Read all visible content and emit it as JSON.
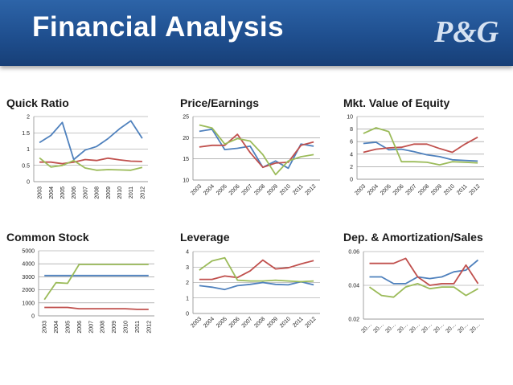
{
  "header": {
    "title": "Financial Analysis",
    "logo_text": "P&G"
  },
  "colors": {
    "blue": "#4f81bd",
    "red": "#c0504d",
    "green": "#9bbb59"
  },
  "chart_data": [
    {
      "id": "quick",
      "type": "line",
      "title": "Quick Ratio",
      "categories": [
        "2003",
        "2004",
        "2005",
        "2006",
        "2007",
        "2008",
        "2009",
        "2010",
        "2011",
        "2012"
      ],
      "ylim": [
        0,
        2
      ],
      "yticks": [
        0,
        0.5,
        1,
        1.5,
        2
      ],
      "ytick_labels": [
        "0",
        "0.5",
        "1",
        "1.5",
        "2"
      ],
      "series": [
        {
          "color": "blue",
          "values": [
            1.2,
            1.42,
            1.82,
            0.68,
            0.97,
            1.08,
            1.32,
            1.62,
            1.87,
            1.33
          ]
        },
        {
          "color": "red",
          "values": [
            0.6,
            0.6,
            0.55,
            0.6,
            0.68,
            0.65,
            0.72,
            0.67,
            0.63,
            0.62
          ]
        },
        {
          "color": "green",
          "values": [
            0.73,
            0.45,
            0.5,
            0.65,
            0.42,
            0.35,
            0.37,
            0.36,
            0.35,
            0.44
          ]
        }
      ]
    },
    {
      "id": "pe",
      "type": "line",
      "title": "Price/Earnings",
      "categories": [
        "2003",
        "2004",
        "2005",
        "2006",
        "2007",
        "2008",
        "2009",
        "2010",
        "2011",
        "2012"
      ],
      "ylim": [
        10,
        25
      ],
      "yticks": [
        10,
        15,
        20,
        25
      ],
      "ytick_labels": [
        "10",
        "15",
        "20",
        "25"
      ],
      "series": [
        {
          "color": "blue",
          "values": [
            21.5,
            22,
            17.2,
            17.5,
            18,
            13,
            14.5,
            12.8,
            18.5,
            18
          ]
        },
        {
          "color": "red",
          "values": [
            17.8,
            18.2,
            18.2,
            20.8,
            16.5,
            13,
            14,
            14.2,
            18.2,
            19
          ]
        },
        {
          "color": "green",
          "values": [
            23,
            22.3,
            18.5,
            19.8,
            19.2,
            16,
            11.3,
            14.5,
            15.5,
            16
          ]
        }
      ]
    },
    {
      "id": "mve",
      "type": "line",
      "title": "Mkt. Value of Equity",
      "categories": [
        "2003",
        "2004",
        "2005",
        "2006",
        "2007",
        "2008",
        "2009",
        "2010",
        "2011",
        "2012"
      ],
      "ylim": [
        0,
        10
      ],
      "yticks": [
        0,
        2,
        4,
        6,
        8,
        10
      ],
      "ytick_labels": [
        "0",
        "2",
        "4",
        "6",
        "8",
        "10"
      ],
      "series": [
        {
          "color": "blue",
          "values": [
            5.7,
            5.9,
            4.7,
            4.8,
            4.4,
            3.9,
            3.6,
            3.1,
            3,
            2.9
          ]
        },
        {
          "color": "red",
          "values": [
            4.3,
            4.8,
            5,
            5.1,
            5.6,
            5.6,
            4.9,
            4.3,
            5.6,
            6.7
          ]
        },
        {
          "color": "green",
          "values": [
            7.3,
            8.2,
            7.6,
            2.8,
            2.8,
            2.7,
            2.3,
            2.8,
            2.7,
            2.6
          ]
        }
      ]
    },
    {
      "id": "cs",
      "type": "line",
      "title": "Common Stock",
      "categories": [
        "2003",
        "2004",
        "2005",
        "2006",
        "2007",
        "2008",
        "2009",
        "2010",
        "2011",
        "2012"
      ],
      "ylim": [
        0,
        5000
      ],
      "yticks": [
        0,
        1000,
        2000,
        3000,
        4000,
        5000
      ],
      "ytick_labels": [
        "0",
        "1000",
        "2000",
        "3000",
        "4000",
        "5000"
      ],
      "series": [
        {
          "color": "blue",
          "values": [
            3100,
            3100,
            3100,
            3100,
            3100,
            3100,
            3100,
            3100,
            3100,
            3100
          ]
        },
        {
          "color": "red",
          "values": [
            650,
            650,
            650,
            550,
            550,
            550,
            550,
            550,
            500,
            500
          ]
        },
        {
          "color": "green",
          "values": [
            1250,
            2550,
            2500,
            3950,
            3950,
            3950,
            3950,
            3950,
            3950,
            3950
          ]
        }
      ]
    },
    {
      "id": "lev",
      "type": "line",
      "title": "Leverage",
      "categories": [
        "2003",
        "2004",
        "2005",
        "2006",
        "2007",
        "2008",
        "2009",
        "2010",
        "2011",
        "2012"
      ],
      "ylim": [
        0,
        4
      ],
      "yticks": [
        0,
        1,
        2,
        3,
        4
      ],
      "ytick_labels": [
        "0",
        "1",
        "2",
        "3",
        "4"
      ],
      "series": [
        {
          "color": "blue",
          "values": [
            1.8,
            1.7,
            1.55,
            1.8,
            1.88,
            2,
            1.88,
            1.85,
            2.05,
            1.85
          ]
        },
        {
          "color": "red",
          "values": [
            2.2,
            2.2,
            2.42,
            2.32,
            2.75,
            3.45,
            2.88,
            2.95,
            3.2,
            3.42
          ]
        },
        {
          "color": "green",
          "values": [
            2.8,
            3.4,
            3.6,
            2.15,
            2.1,
            2.1,
            2.15,
            2.1,
            2.05,
            2.1
          ]
        }
      ]
    },
    {
      "id": "da",
      "type": "line",
      "title": "Dep. & Amortization/Sales",
      "categories": [
        "20…",
        "20…",
        "20…",
        "20…",
        "20…",
        "20…",
        "20…",
        "20…",
        "20…",
        "20…"
      ],
      "ylim": [
        0.02,
        0.06
      ],
      "yticks": [
        0.02,
        0.04,
        0.06
      ],
      "ytick_labels": [
        "0.02",
        "0.04",
        "0.06"
      ],
      "series": [
        {
          "color": "blue",
          "values": [
            0.045,
            0.045,
            0.041,
            0.041,
            0.045,
            0.044,
            0.045,
            0.048,
            0.049,
            0.055
          ]
        },
        {
          "color": "red",
          "values": [
            0.053,
            0.053,
            0.053,
            0.056,
            0.045,
            0.04,
            0.041,
            0.041,
            0.052,
            0.041
          ]
        },
        {
          "color": "green",
          "values": [
            0.039,
            0.034,
            0.033,
            0.039,
            0.041,
            0.038,
            0.039,
            0.039,
            0.034,
            0.038
          ]
        }
      ]
    }
  ]
}
